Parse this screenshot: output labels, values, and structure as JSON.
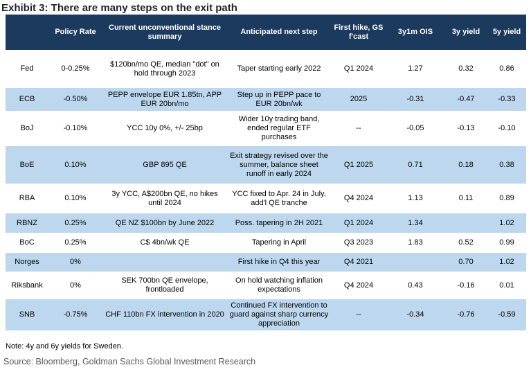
{
  "title": "Exhibit 3: There are many steps on the exit path",
  "note": "Note: 4y and 6y yields for Sweden.",
  "source": "Source: Bloomberg, Goldman Sachs Global Investment Research",
  "colors": {
    "header_bg": "#1b3a5e",
    "stripe_bg": "#bdd7ee",
    "header_text": "#ffffff",
    "title_color": "#1f2430",
    "source_color": "#58595b"
  },
  "table": {
    "columns": [
      "",
      "Policy Rate",
      "Current unconventional stance summary",
      "Anticipated next step",
      "First hike, GS f'cast",
      "3y1m OIS",
      "3y yield",
      "5y yield"
    ],
    "rows": [
      {
        "bank": "Fed",
        "policy_rate": "0-0.25%",
        "stance": "$120bn/mo QE, median \"dot\" on hold through 2023",
        "next_step": "Taper starting early 2022",
        "first_hike": "Q1 2024",
        "ois_3y1m": "1.27",
        "yield_3y": "0.32",
        "yield_5y": "0.86"
      },
      {
        "bank": "ECB",
        "policy_rate": "-0.50%",
        "stance": "PEPP envelope EUR 1.85tn, APP EUR 20bn/mo",
        "next_step": "Step up in PEPP pace to EUR 20bn/wk",
        "first_hike": "2025",
        "ois_3y1m": "-0.31",
        "yield_3y": "-0.47",
        "yield_5y": "-0.33"
      },
      {
        "bank": "BoJ",
        "policy_rate": "-0.10%",
        "stance": "YCC 10y 0%, +/- 25bp",
        "next_step": "Wider 10y trading band, ended regular ETF purchases",
        "first_hike": "--",
        "ois_3y1m": "-0.05",
        "yield_3y": "-0.13",
        "yield_5y": "-0.10"
      },
      {
        "bank": "BoE",
        "policy_rate": "0.10%",
        "stance": "GBP 895 QE",
        "next_step": "Exit strategy revised over the summer, balance sheet runoff in early 2024",
        "first_hike": "Q1 2025",
        "ois_3y1m": "0.71",
        "yield_3y": "0.18",
        "yield_5y": "0.38"
      },
      {
        "bank": "RBA",
        "policy_rate": "0.10%",
        "stance": "3y YCC, A$200bn QE, no hikes until 2024",
        "next_step": "YCC fixed to Apr. 24 in July, add'l QE tranche",
        "first_hike": "Q4 2024",
        "ois_3y1m": "1.13",
        "yield_3y": "0.11",
        "yield_5y": "0.89"
      },
      {
        "bank": "RBNZ",
        "policy_rate": "0.25%",
        "stance": "QE NZ $100bn by June 2022",
        "next_step": "Poss. tapering in 2H 2021",
        "first_hike": "Q1 2024",
        "ois_3y1m": "1.34",
        "yield_3y": "",
        "yield_5y": "1.02"
      },
      {
        "bank": "BoC",
        "policy_rate": "0.25%",
        "stance": "C$ 4bn/wk QE",
        "next_step": "Tapering in April",
        "first_hike": "Q3 2023",
        "ois_3y1m": "1.83",
        "yield_3y": "0.52",
        "yield_5y": "0.99"
      },
      {
        "bank": "Norges",
        "policy_rate": "0%",
        "stance": "",
        "next_step": "First hike in Q4 this year",
        "first_hike": "Q4 2021",
        "ois_3y1m": "",
        "yield_3y": "0.70",
        "yield_5y": "1.02"
      },
      {
        "bank": "Riksbank",
        "policy_rate": "0%",
        "stance": "SEK 700bn QE envelope, frontloaded",
        "next_step": "On hold watching inflation expectations",
        "first_hike": "Q4 2024",
        "ois_3y1m": "0.43",
        "yield_3y": "-0.16",
        "yield_5y": "0.01"
      },
      {
        "bank": "SNB",
        "policy_rate": "-0.75%",
        "stance": "CHF 110bn FX intervention in 2020",
        "next_step": "Continued FX intervention to guard against sharp currency appreciation",
        "first_hike": "--",
        "ois_3y1m": "-0.34",
        "yield_3y": "-0.76",
        "yield_5y": "-0.59"
      }
    ]
  }
}
